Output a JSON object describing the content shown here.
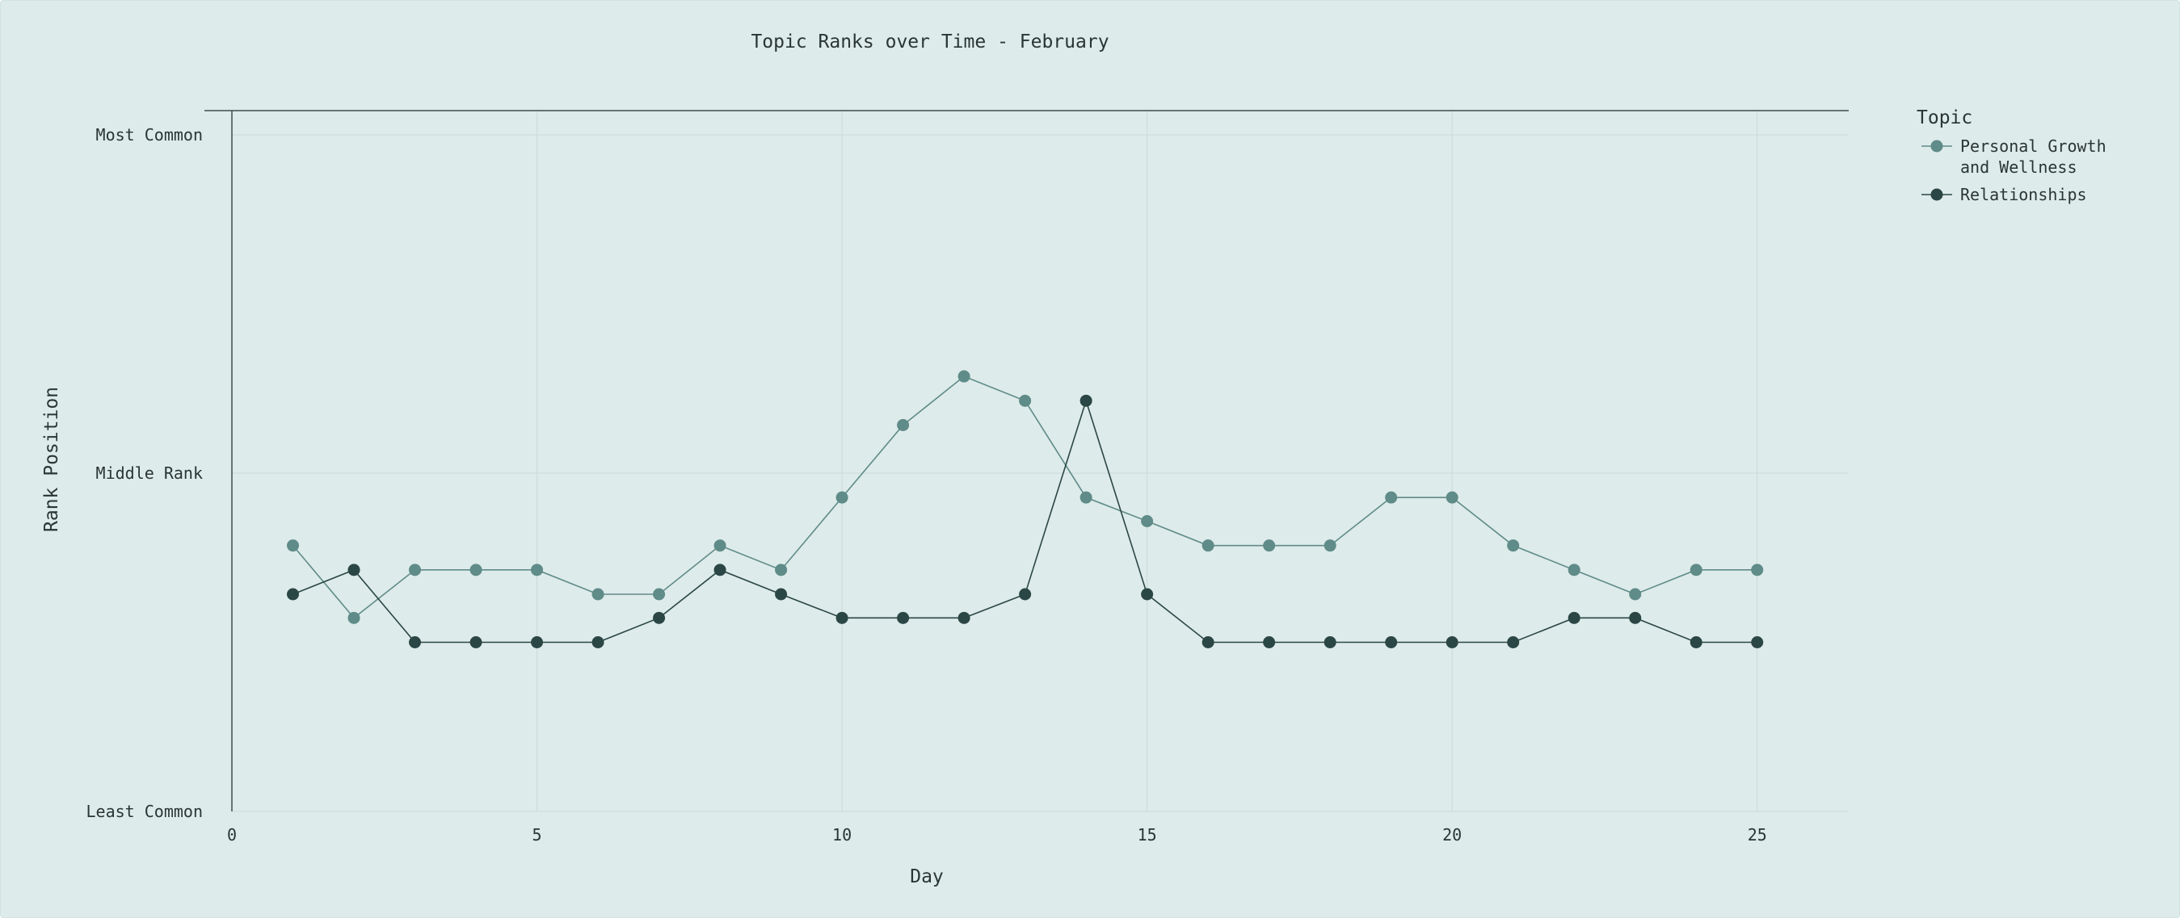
{
  "chart_data": {
    "type": "line",
    "title": "Topic Ranks over Time - February",
    "xlabel": "Day",
    "ylabel": "Rank Position",
    "xlim": [
      0,
      26.5
    ],
    "ylim": [
      0,
      1
    ],
    "x_ticks": [
      "0",
      "5",
      "10",
      "15",
      "20",
      "25"
    ],
    "y_ticks": [
      {
        "value": 1,
        "label": "Most Common"
      },
      {
        "value": 0.5,
        "label": "Middle Rank"
      },
      {
        "value": 0,
        "label": "Least Common"
      }
    ],
    "grid": true,
    "legend_title": "Topic",
    "legend_position": "top-right outside",
    "x": [
      1,
      2,
      3,
      4,
      5,
      6,
      7,
      8,
      9,
      10,
      11,
      12,
      13,
      14,
      15,
      16,
      17,
      18,
      19,
      20,
      21,
      22,
      23,
      24,
      25
    ],
    "series": [
      {
        "name": "Personal Growth and Wellness",
        "legend_lines": [
          "Personal Growth",
          "and Wellness"
        ],
        "color": "#5f8b88",
        "values": [
          0.393,
          0.286,
          0.357,
          0.357,
          0.357,
          0.321,
          0.321,
          0.393,
          0.357,
          0.464,
          0.571,
          0.643,
          0.607,
          0.464,
          0.429,
          0.393,
          0.393,
          0.393,
          0.464,
          0.464,
          0.393,
          0.357,
          0.321,
          0.357,
          0.357
        ]
      },
      {
        "name": "Relationships",
        "legend_lines": [
          "Relationships"
        ],
        "color": "#2b4745",
        "values": [
          0.321,
          0.357,
          0.25,
          0.25,
          0.25,
          0.25,
          0.286,
          0.357,
          0.321,
          0.286,
          0.286,
          0.286,
          0.321,
          0.607,
          0.321,
          0.25,
          0.25,
          0.25,
          0.25,
          0.25,
          0.25,
          0.286,
          0.286,
          0.25,
          0.25
        ]
      }
    ]
  }
}
